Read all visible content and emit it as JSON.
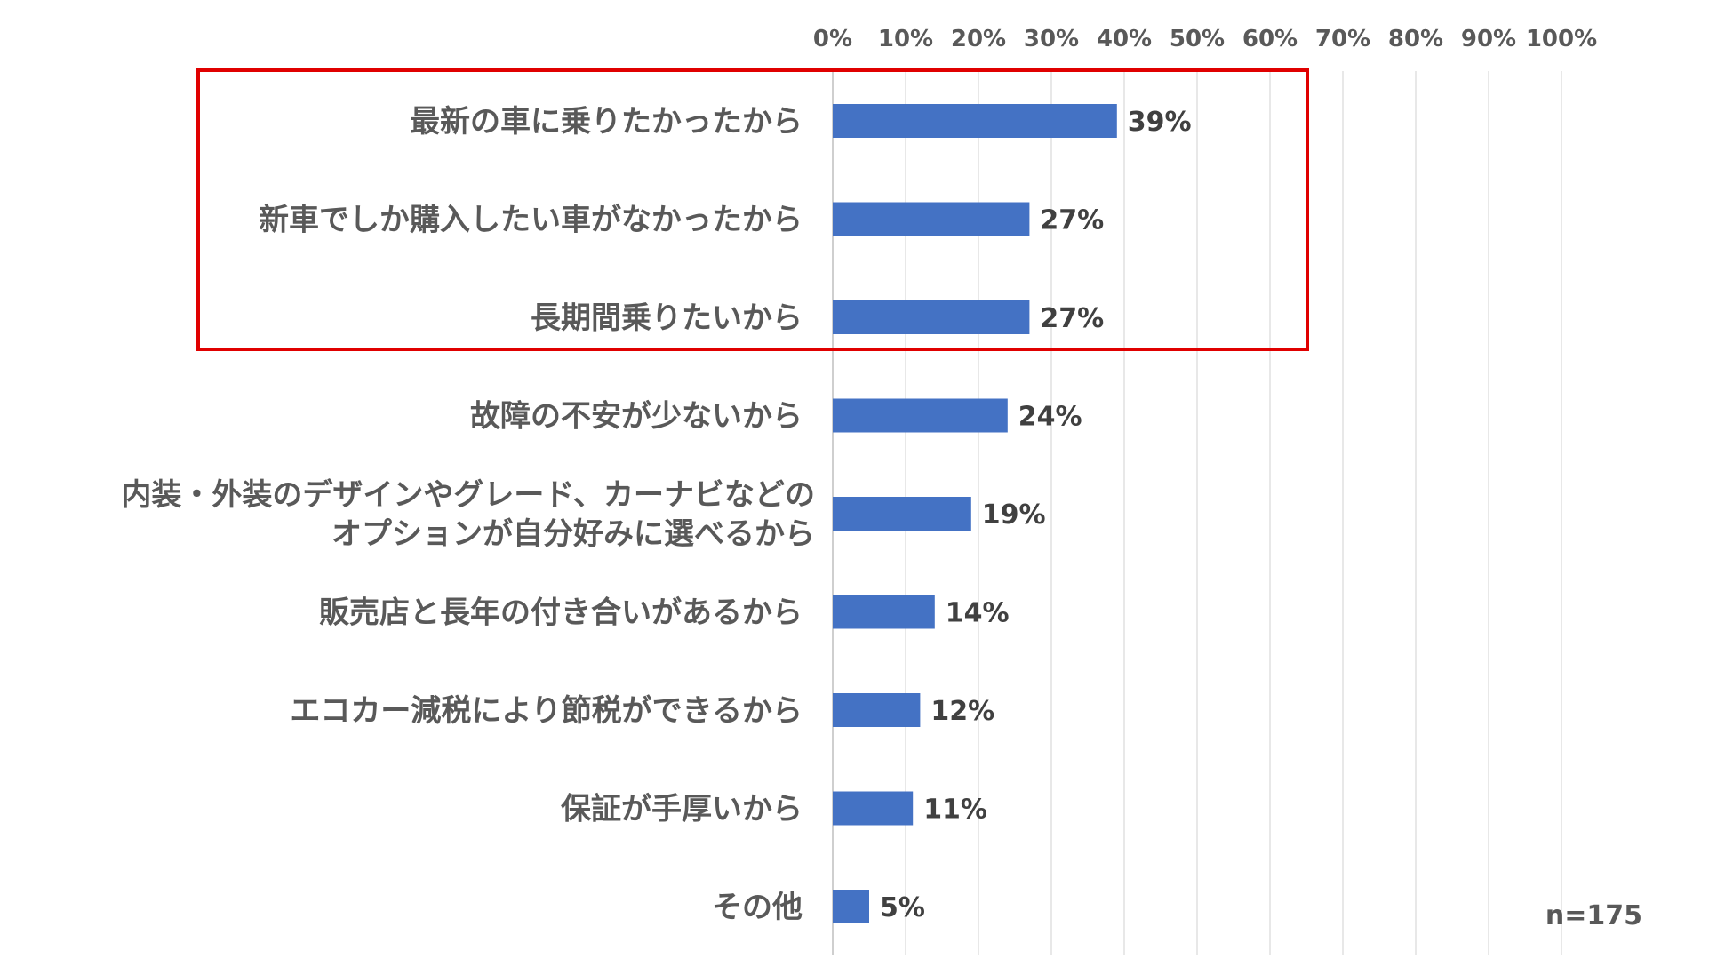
{
  "chart_data": {
    "type": "bar",
    "orientation": "horizontal",
    "categories": [
      "最新の車に乗りたかったから",
      "新車でしか購入したい車がなかったから",
      "長期間乗りたいから",
      "故障の不安が少ないから",
      "内装・外装のデザインやグレード、カーナビなどの\nオプションが自分好みに選べるから",
      "販売店と長年の付き合いがあるから",
      "エコカー減税により節税ができるから",
      "保証が手厚いから",
      "その他"
    ],
    "values": [
      39,
      27,
      27,
      24,
      19,
      14,
      12,
      11,
      5
    ],
    "value_labels": [
      "39%",
      "27%",
      "27%",
      "24%",
      "19%",
      "14%",
      "12%",
      "11%",
      "5%"
    ],
    "xlim": [
      0,
      100
    ],
    "x_ticks": [
      "0%",
      "10%",
      "20%",
      "30%",
      "40%",
      "50%",
      "60%",
      "70%",
      "80%",
      "90%",
      "100%"
    ],
    "x_axis_position": "top",
    "grid": true,
    "bar_color": "#4472C4",
    "highlight": {
      "categories_index": [
        0,
        1,
        2
      ],
      "color": "#E00000"
    },
    "note": "n=175",
    "title": "",
    "xlabel": "",
    "ylabel": ""
  }
}
